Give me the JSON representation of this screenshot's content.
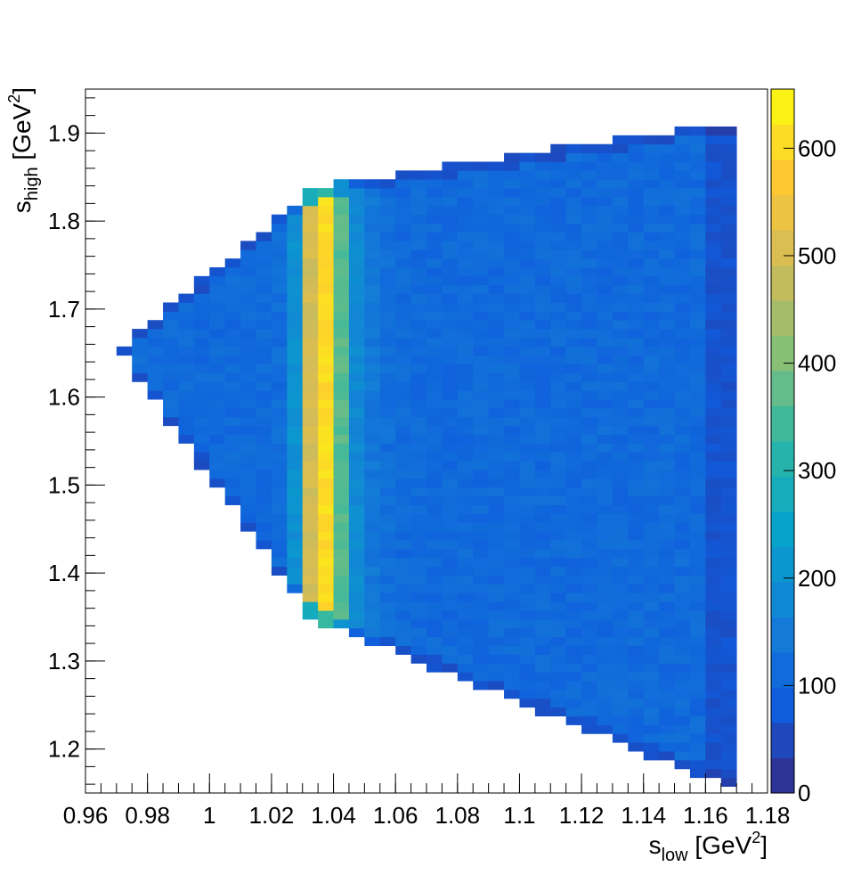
{
  "chart_data": {
    "type": "heatmap",
    "title": "",
    "xlabel": {
      "main": "s",
      "sub": "low",
      "unit_open": " [GeV",
      "sup": "2",
      "unit_close": "]"
    },
    "ylabel": {
      "main": "s",
      "sub": "high",
      "unit_open": " [GeV",
      "sup": "2",
      "unit_close": "]"
    },
    "xlim": [
      0.96,
      1.18
    ],
    "ylim": [
      1.15,
      1.95
    ],
    "x_ticks": [
      "0.96",
      "0.98",
      "1",
      "1.02",
      "1.04",
      "1.06",
      "1.08",
      "1.1",
      "1.12",
      "1.14",
      "1.16",
      "1.18"
    ],
    "y_ticks": [
      "1.2",
      "1.3",
      "1.4",
      "1.5",
      "1.6",
      "1.7",
      "1.8",
      "1.9"
    ],
    "zlim": [
      0,
      655
    ],
    "colorbar_ticks": [
      "0",
      "100",
      "200",
      "300",
      "400",
      "500",
      "600"
    ],
    "bin_width": 0.005,
    "grid": false,
    "palette": "ROOT kBird",
    "colors": {
      "palette": [
        "#352a87",
        "#0f5cdd",
        "#1481d6",
        "#06a4ca",
        "#2eb7a4",
        "#87bf77",
        "#d1bb59",
        "#fec832",
        "#f9fb0e"
      ]
    },
    "description_note_free": true
  }
}
